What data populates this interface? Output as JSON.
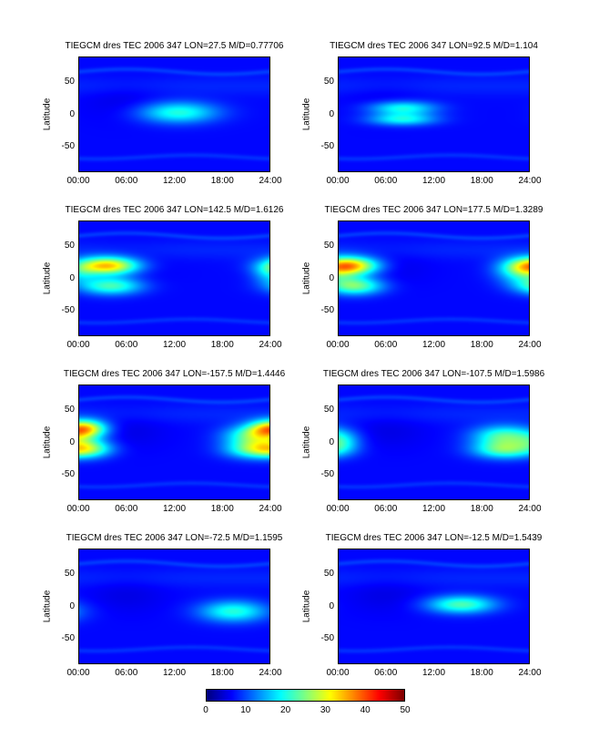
{
  "chart_data": {
    "type": "heatmap",
    "colormap": "jet",
    "clim": [
      0,
      50
    ],
    "colorbar": {
      "ticks": [
        "0",
        "10",
        "20",
        "30",
        "40",
        "50"
      ],
      "values": [
        0,
        10,
        20,
        30,
        40,
        50
      ]
    },
    "xticks": [
      "00:00",
      "06:00",
      "12:00",
      "18:00",
      "24:00"
    ],
    "xtick_values": [
      0,
      6,
      12,
      18,
      24
    ],
    "yticks": [
      "50",
      "0",
      "-50"
    ],
    "ytick_values": [
      50,
      0,
      -50
    ],
    "xlim": [
      0,
      24
    ],
    "ylim": [
      -90,
      90
    ],
    "ylabel": "Latitude",
    "panels": [
      {
        "title": "TIEGCM dres TEC 2006 347 LON=27.5 M/D=0.77706",
        "blobs": [
          {
            "x": 12.5,
            "y": 3,
            "sx": 3.5,
            "sy": 12,
            "v": 20
          }
        ]
      },
      {
        "title": "TIEGCM dres TEC 2006 347 LON=92.5 M/D=1.104",
        "blobs": [
          {
            "x": 8,
            "y": 10,
            "sx": 3,
            "sy": 8,
            "v": 20
          },
          {
            "x": 8,
            "y": -8,
            "sx": 3,
            "sy": 7,
            "v": 19
          }
        ]
      },
      {
        "title": "TIEGCM dres TEC 2006 347 LON=142.5 M/D=1.6126",
        "blobs": [
          {
            "x": 3.5,
            "y": 20,
            "sx": 2.8,
            "sy": 10,
            "v": 35
          },
          {
            "x": 4,
            "y": -12,
            "sx": 2.8,
            "sy": 10,
            "v": 22
          },
          {
            "x": 24,
            "y": 8,
            "sx": 1.5,
            "sy": 12,
            "v": 13
          }
        ]
      },
      {
        "title": "TIEGCM dres TEC 2006 347 LON=177.5 M/D=1.3289",
        "blobs": [
          {
            "x": 1.5,
            "y": 20,
            "sx": 2.5,
            "sy": 10,
            "v": 33
          },
          {
            "x": 2,
            "y": -12,
            "sx": 2.5,
            "sy": 10,
            "v": 24
          },
          {
            "x": 23,
            "y": 12,
            "sx": 2.2,
            "sy": 14,
            "v": 18
          }
        ]
      },
      {
        "title": "TIEGCM dres TEC 2006 347 LON=-157.5 M/D=1.4446",
        "blobs": [
          {
            "x": 0.5,
            "y": 22,
            "sx": 2,
            "sy": 10,
            "v": 32
          },
          {
            "x": 1,
            "y": -10,
            "sx": 2.2,
            "sy": 10,
            "v": 22
          },
          {
            "x": 22,
            "y": 10,
            "sx": 2.6,
            "sy": 12,
            "v": 22
          },
          {
            "x": 22,
            "y": -12,
            "sx": 2.6,
            "sy": 10,
            "v": 20
          }
        ]
      },
      {
        "title": "TIEGCM dres TEC 2006 347 LON=-107.5 M/D=1.5986",
        "blobs": [
          {
            "x": 21,
            "y": 10,
            "sx": 2.8,
            "sy": 12,
            "v": 22
          },
          {
            "x": 21,
            "y": -12,
            "sx": 2.8,
            "sy": 10,
            "v": 22
          },
          {
            "x": 0.5,
            "y": 0,
            "sx": 1.5,
            "sy": 12,
            "v": 13
          }
        ]
      },
      {
        "title": "TIEGCM dres TEC 2006 347 LON=-72.5 M/D=1.1595",
        "blobs": [
          {
            "x": 19.5,
            "y": -8,
            "sx": 3,
            "sy": 12,
            "v": 20
          }
        ]
      },
      {
        "title": "TIEGCM dres TEC 2006 347 LON=-12.5 M/D=1.5439",
        "blobs": [
          {
            "x": 15.5,
            "y": 3,
            "sx": 3,
            "sy": 10,
            "v": 22
          }
        ]
      }
    ]
  }
}
